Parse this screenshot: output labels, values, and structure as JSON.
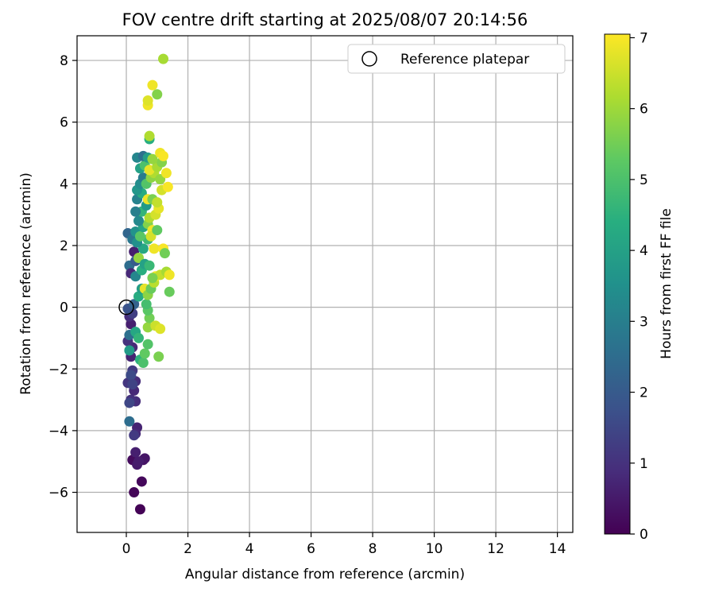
{
  "chart_data": {
    "type": "scatter",
    "title": "FOV centre drift starting at 2025/08/07 20:14:56",
    "xlabel": "Angular distance from reference (arcmin)",
    "ylabel": "Rotation from reference (arcmin)",
    "xlim": [
      -1.6,
      14.5
    ],
    "ylim": [
      -7.3,
      8.8
    ],
    "xticks": [
      0,
      2,
      4,
      6,
      8,
      10,
      12,
      14
    ],
    "yticks": [
      -6,
      -4,
      -2,
      0,
      2,
      4,
      6,
      8
    ],
    "xtick_labels": [
      "0",
      "2",
      "4",
      "6",
      "8",
      "10",
      "12",
      "14"
    ],
    "ytick_labels": [
      "−6",
      "−4",
      "−2",
      "0",
      "2",
      "4",
      "6",
      "8"
    ],
    "grid": true,
    "legend": {
      "position": "upper right",
      "entries": [
        {
          "label": "Reference platepar",
          "marker": "open-circle",
          "x": 0,
          "y": 0
        }
      ]
    },
    "colorbar": {
      "label": "Hours from first FF file",
      "range": [
        0,
        7.05
      ],
      "ticks": [
        0,
        1,
        2,
        3,
        4,
        5,
        6,
        7
      ],
      "tick_labels": [
        "0",
        "1",
        "2",
        "3",
        "4",
        "5",
        "6",
        "7"
      ],
      "colormap": "viridis"
    },
    "points": [
      {
        "x": 0.45,
        "y": -6.55,
        "c": 0.05
      },
      {
        "x": 0.25,
        "y": -6.0,
        "c": 0.1
      },
      {
        "x": 0.5,
        "y": -5.65,
        "c": 0.15
      },
      {
        "x": 0.2,
        "y": -4.95,
        "c": 0.2
      },
      {
        "x": 0.55,
        "y": -4.95,
        "c": 0.3
      },
      {
        "x": 0.6,
        "y": -4.9,
        "c": 0.4
      },
      {
        "x": 0.35,
        "y": -5.1,
        "c": 0.5
      },
      {
        "x": 0.4,
        "y": -5.0,
        "c": 0.55
      },
      {
        "x": 0.3,
        "y": -4.7,
        "c": 0.6
      },
      {
        "x": 0.35,
        "y": -3.9,
        "c": 0.7
      },
      {
        "x": 0.3,
        "y": -4.1,
        "c": 0.8
      },
      {
        "x": 0.25,
        "y": -4.15,
        "c": 1.2
      },
      {
        "x": 0.3,
        "y": -3.05,
        "c": 0.9
      },
      {
        "x": 0.15,
        "y": -3.0,
        "c": 1.0
      },
      {
        "x": 0.1,
        "y": -3.1,
        "c": 1.5
      },
      {
        "x": 0.05,
        "y": -2.45,
        "c": 1.1
      },
      {
        "x": 0.25,
        "y": -2.7,
        "c": 0.8
      },
      {
        "x": 0.3,
        "y": -2.4,
        "c": 0.9
      },
      {
        "x": 0.2,
        "y": -2.05,
        "c": 1.2
      },
      {
        "x": 0.15,
        "y": -2.2,
        "c": 1.6
      },
      {
        "x": 0.2,
        "y": -2.5,
        "c": 1.4
      },
      {
        "x": 0.1,
        "y": -3.7,
        "c": 2.5
      },
      {
        "x": 0.15,
        "y": -1.6,
        "c": 0.7
      },
      {
        "x": 0.2,
        "y": -1.3,
        "c": 0.8
      },
      {
        "x": 0.05,
        "y": -1.1,
        "c": 1.0
      },
      {
        "x": 0.1,
        "y": -0.9,
        "c": 2.6
      },
      {
        "x": 0.15,
        "y": -0.55,
        "c": 0.6
      },
      {
        "x": 0.1,
        "y": -0.3,
        "c": 0.9
      },
      {
        "x": 0.2,
        "y": -0.2,
        "c": 1.3
      },
      {
        "x": 0.05,
        "y": -0.05,
        "c": 1.8
      },
      {
        "x": 0.25,
        "y": 0.1,
        "c": 2.2
      },
      {
        "x": 0.1,
        "y": 1.35,
        "c": 2.5
      },
      {
        "x": 0.15,
        "y": 1.1,
        "c": 0.8
      },
      {
        "x": 0.05,
        "y": 2.4,
        "c": 2.3
      },
      {
        "x": 0.2,
        "y": 2.2,
        "c": 2.8
      },
      {
        "x": 0.25,
        "y": 1.8,
        "c": 0.6
      },
      {
        "x": 0.3,
        "y": 1.5,
        "c": 2.0
      },
      {
        "x": 0.1,
        "y": -1.4,
        "c": 3.8
      },
      {
        "x": 0.3,
        "y": -0.8,
        "c": 4.2
      },
      {
        "x": 0.4,
        "y": -1.0,
        "c": 4.6
      },
      {
        "x": 0.45,
        "y": -1.7,
        "c": 4.5
      },
      {
        "x": 0.55,
        "y": -1.8,
        "c": 5.0
      },
      {
        "x": 0.6,
        "y": -1.5,
        "c": 5.3
      },
      {
        "x": 0.7,
        "y": -1.2,
        "c": 5.1
      },
      {
        "x": 0.7,
        "y": -0.65,
        "c": 5.9
      },
      {
        "x": 0.75,
        "y": -0.35,
        "c": 5.5
      },
      {
        "x": 0.95,
        "y": -0.6,
        "c": 6.5
      },
      {
        "x": 1.1,
        "y": -0.7,
        "c": 6.7
      },
      {
        "x": 1.05,
        "y": -1.6,
        "c": 5.6
      },
      {
        "x": 0.7,
        "y": -0.1,
        "c": 5.2
      },
      {
        "x": 0.65,
        "y": 0.1,
        "c": 4.9
      },
      {
        "x": 0.4,
        "y": 0.35,
        "c": 4.3
      },
      {
        "x": 0.5,
        "y": 0.6,
        "c": 3.9
      },
      {
        "x": 0.6,
        "y": 0.6,
        "c": 6.8
      },
      {
        "x": 0.7,
        "y": 0.4,
        "c": 5.8
      },
      {
        "x": 0.8,
        "y": 0.6,
        "c": 5.4
      },
      {
        "x": 0.9,
        "y": 0.8,
        "c": 6.3
      },
      {
        "x": 0.95,
        "y": 1.0,
        "c": 6.9
      },
      {
        "x": 1.1,
        "y": 1.05,
        "c": 6.4
      },
      {
        "x": 1.3,
        "y": 1.15,
        "c": 6.1
      },
      {
        "x": 1.4,
        "y": 1.05,
        "c": 6.9
      },
      {
        "x": 1.4,
        "y": 0.5,
        "c": 5.4
      },
      {
        "x": 0.85,
        "y": 0.95,
        "c": 5.6
      },
      {
        "x": 0.3,
        "y": 1.0,
        "c": 3.2
      },
      {
        "x": 0.5,
        "y": 1.2,
        "c": 4.4
      },
      {
        "x": 0.4,
        "y": 1.6,
        "c": 5.9
      },
      {
        "x": 0.6,
        "y": 1.4,
        "c": 4.0
      },
      {
        "x": 0.75,
        "y": 1.35,
        "c": 4.7
      },
      {
        "x": 0.55,
        "y": 1.9,
        "c": 4.2
      },
      {
        "x": 0.7,
        "y": 2.2,
        "c": 4.8
      },
      {
        "x": 0.9,
        "y": 1.9,
        "c": 6.9
      },
      {
        "x": 1.2,
        "y": 1.9,
        "c": 7.0
      },
      {
        "x": 1.25,
        "y": 1.75,
        "c": 5.5
      },
      {
        "x": 0.35,
        "y": 2.1,
        "c": 3.5
      },
      {
        "x": 0.3,
        "y": 2.45,
        "c": 3.6
      },
      {
        "x": 0.45,
        "y": 2.3,
        "c": 5.2
      },
      {
        "x": 0.55,
        "y": 2.6,
        "c": 4.1
      },
      {
        "x": 0.7,
        "y": 2.7,
        "c": 5.7
      },
      {
        "x": 0.85,
        "y": 2.5,
        "c": 6.9
      },
      {
        "x": 0.8,
        "y": 2.3,
        "c": 6.6
      },
      {
        "x": 1.0,
        "y": 2.5,
        "c": 5.3
      },
      {
        "x": 0.4,
        "y": 2.8,
        "c": 3.3
      },
      {
        "x": 0.5,
        "y": 3.1,
        "c": 4.6
      },
      {
        "x": 0.65,
        "y": 3.3,
        "c": 3.8
      },
      {
        "x": 0.75,
        "y": 2.9,
        "c": 6.2
      },
      {
        "x": 0.95,
        "y": 3.0,
        "c": 6.6
      },
      {
        "x": 1.05,
        "y": 3.2,
        "c": 6.8
      },
      {
        "x": 0.3,
        "y": 3.1,
        "c": 3.0
      },
      {
        "x": 0.35,
        "y": 3.5,
        "c": 3.1
      },
      {
        "x": 0.5,
        "y": 3.7,
        "c": 4.3
      },
      {
        "x": 0.7,
        "y": 3.5,
        "c": 6.9
      },
      {
        "x": 0.85,
        "y": 3.5,
        "c": 5.6
      },
      {
        "x": 1.0,
        "y": 3.4,
        "c": 6.4
      },
      {
        "x": 1.15,
        "y": 3.8,
        "c": 6.6
      },
      {
        "x": 1.35,
        "y": 3.9,
        "c": 7.0
      },
      {
        "x": 0.35,
        "y": 3.8,
        "c": 3.7
      },
      {
        "x": 0.45,
        "y": 4.0,
        "c": 3.4
      },
      {
        "x": 0.55,
        "y": 4.2,
        "c": 2.9
      },
      {
        "x": 0.65,
        "y": 4.0,
        "c": 5.1
      },
      {
        "x": 0.8,
        "y": 4.2,
        "c": 5.8
      },
      {
        "x": 0.9,
        "y": 4.35,
        "c": 6.2
      },
      {
        "x": 1.1,
        "y": 4.15,
        "c": 5.9
      },
      {
        "x": 1.3,
        "y": 4.35,
        "c": 6.9
      },
      {
        "x": 0.45,
        "y": 4.5,
        "c": 4.0
      },
      {
        "x": 0.6,
        "y": 4.6,
        "c": 5.0
      },
      {
        "x": 0.75,
        "y": 4.45,
        "c": 6.8
      },
      {
        "x": 1.0,
        "y": 4.55,
        "c": 6.1
      },
      {
        "x": 1.15,
        "y": 4.7,
        "c": 5.7
      },
      {
        "x": 0.35,
        "y": 4.85,
        "c": 3.2
      },
      {
        "x": 0.55,
        "y": 4.9,
        "c": 2.6
      },
      {
        "x": 0.7,
        "y": 4.85,
        "c": 3.9
      },
      {
        "x": 0.85,
        "y": 4.8,
        "c": 5.9
      },
      {
        "x": 1.1,
        "y": 5.0,
        "c": 6.9
      },
      {
        "x": 1.2,
        "y": 4.9,
        "c": 7.0
      },
      {
        "x": 0.75,
        "y": 5.45,
        "c": 4.4
      },
      {
        "x": 0.75,
        "y": 5.55,
        "c": 6.2
      },
      {
        "x": 0.7,
        "y": 6.55,
        "c": 6.9
      },
      {
        "x": 0.7,
        "y": 6.7,
        "c": 6.7
      },
      {
        "x": 1.0,
        "y": 6.9,
        "c": 5.7
      },
      {
        "x": 0.85,
        "y": 7.2,
        "c": 6.9
      },
      {
        "x": 1.2,
        "y": 8.05,
        "c": 6.1
      }
    ]
  }
}
